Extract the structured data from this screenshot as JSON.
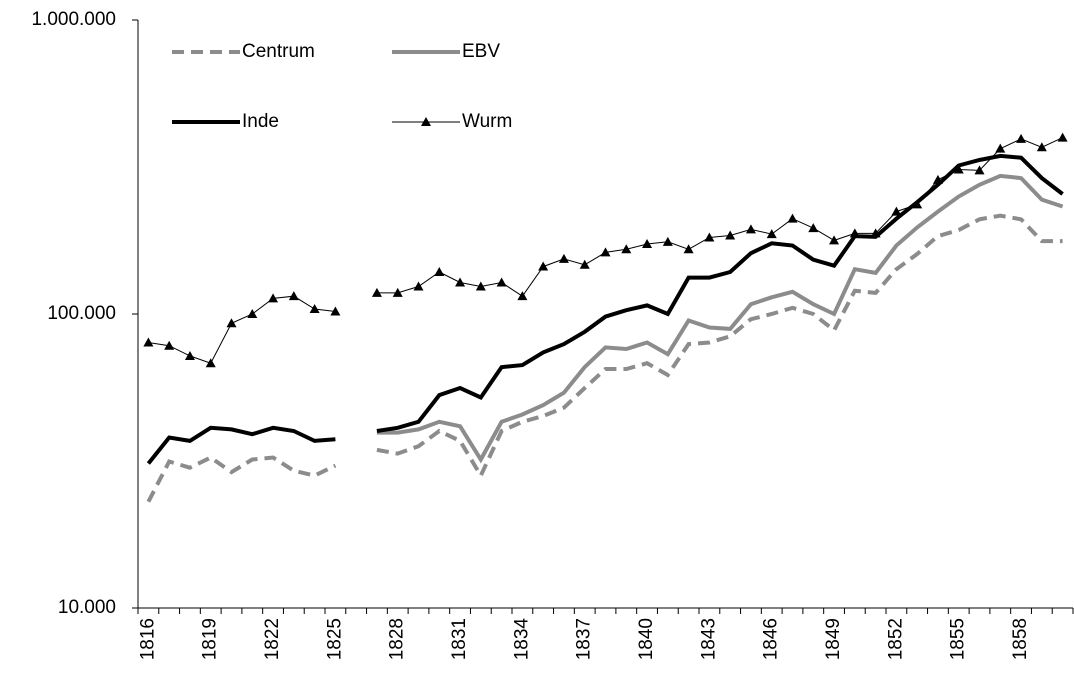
{
  "chart_data": {
    "type": "line",
    "log_scale_y": true,
    "x": [
      1816,
      null,
      null,
      1819,
      null,
      null,
      1822,
      null,
      null,
      1825,
      null,
      null,
      1828,
      null,
      null,
      1831,
      null,
      null,
      1834,
      null,
      null,
      1837,
      null,
      null,
      1840,
      null,
      null,
      1843,
      null,
      null,
      1846,
      null,
      null,
      1849,
      null,
      null,
      1852,
      null,
      null,
      1855,
      null,
      null,
      1858,
      null,
      null
    ],
    "ylim": [
      10000,
      1000000
    ],
    "yticks": [
      {
        "value": 10000,
        "label": "10.000"
      },
      {
        "value": 100000,
        "label": "100.000"
      },
      {
        "value": 1000000,
        "label": "1.000.000"
      }
    ],
    "series": [
      {
        "name": "Centrum",
        "color": "#8c8c8c",
        "dashed": true,
        "line_width": 4,
        "values": [
          23000,
          31500,
          30000,
          32500,
          29000,
          32000,
          32500,
          29300,
          28200,
          30500,
          null,
          34500,
          33500,
          35500,
          40000,
          37000,
          28200,
          40000,
          43000,
          45000,
          48000,
          56000,
          65000,
          65000,
          68000,
          62000,
          79000,
          80000,
          84000,
          96000,
          100000,
          105000,
          100000,
          88000,
          120000,
          118000,
          142000,
          160000,
          184000,
          193000,
          210000,
          216000,
          210000,
          177000,
          177000
        ]
      },
      {
        "name": "EBV",
        "color": "#8c8c8c",
        "line_width": 4,
        "values": [
          null,
          null,
          null,
          null,
          null,
          null,
          null,
          null,
          null,
          null,
          null,
          39500,
          39500,
          40500,
          43000,
          41500,
          32000,
          43000,
          45500,
          49000,
          54000,
          66000,
          77000,
          76000,
          80000,
          73000,
          95000,
          90000,
          89000,
          108000,
          114000,
          119000,
          108000,
          100000,
          142000,
          138000,
          171000,
          197000,
          223000,
          251000,
          275000,
          295000,
          290000,
          245000,
          232000
        ]
      },
      {
        "name": "Inde",
        "color": "#000000",
        "line_width": 4,
        "values": [
          31000,
          38000,
          37000,
          41000,
          40500,
          39000,
          41000,
          40000,
          37000,
          37500,
          null,
          40000,
          41000,
          43000,
          53000,
          56000,
          52000,
          66000,
          67000,
          74000,
          79000,
          87000,
          98000,
          103000,
          107000,
          100000,
          133000,
          133000,
          139000,
          161000,
          174000,
          171000,
          153000,
          146000,
          184000,
          183000,
          211000,
          240000,
          275000,
          320000,
          334000,
          345000,
          340000,
          290000,
          256000
        ]
      },
      {
        "name": "Wurm",
        "color": "#000000",
        "line_width": 1,
        "marker": "triangle",
        "values": [
          80000,
          78000,
          72000,
          68000,
          93000,
          100000,
          113000,
          115000,
          104000,
          102000,
          null,
          118000,
          118000,
          124000,
          139000,
          128000,
          124000,
          128000,
          115000,
          145000,
          154000,
          147000,
          162000,
          166000,
          173000,
          176000,
          166000,
          182000,
          185000,
          194000,
          187000,
          211000,
          196000,
          178000,
          188000,
          188000,
          223000,
          236000,
          286000,
          310000,
          308000,
          365000,
          394000,
          369000,
          398000
        ]
      }
    ]
  }
}
